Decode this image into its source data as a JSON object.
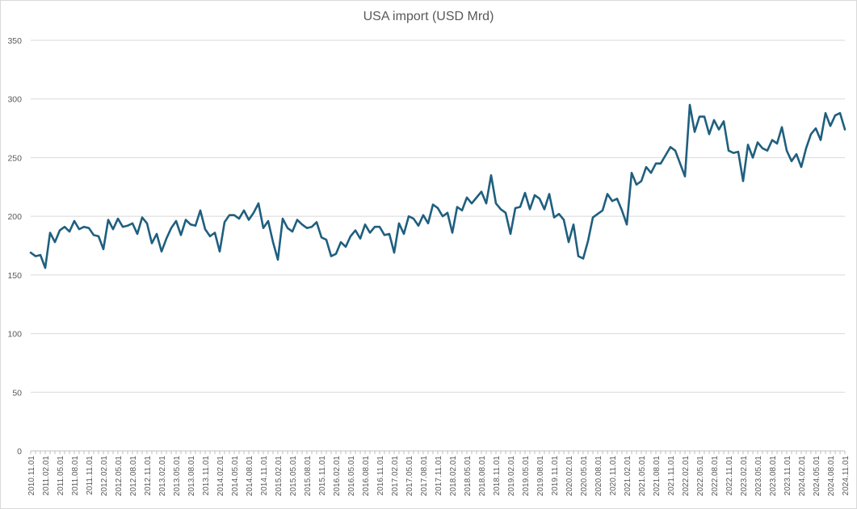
{
  "chart_data": {
    "type": "line",
    "title": "USA import (USD Mrd)",
    "xlabel": "",
    "ylabel": "",
    "ylim": [
      0,
      350
    ],
    "yticks": [
      0,
      50,
      100,
      150,
      200,
      250,
      300,
      350
    ],
    "grid": true,
    "legend": "none",
    "line_color": "#1f5f7f",
    "start_month": "2010.11.01",
    "x_tick_labels": [
      "2010.11.01",
      "2011.02.01",
      "2011.05.01",
      "2011.08.01",
      "2011.11.01",
      "2012.02.01",
      "2012.05.01",
      "2012.08.01",
      "2012.11.01",
      "2013.02.01",
      "2013.05.01",
      "2013.08.01",
      "2013.11.01",
      "2014.02.01",
      "2014.05.01",
      "2014.08.01",
      "2014.11.01",
      "2015.02.01",
      "2015.05.01",
      "2015.08.01",
      "2015.11.01",
      "2016.02.01",
      "2016.05.01",
      "2016.08.01",
      "2016.11.01",
      "2017.02.01",
      "2017.05.01",
      "2017.08.01",
      "2017.11.01",
      "2018.02.01",
      "2018.05.01",
      "2018.08.01",
      "2018.11.01",
      "2019.02.01",
      "2019.05.01",
      "2019.08.01",
      "2019.11.01",
      "2020.02.01",
      "2020.05.01",
      "2020.08.01",
      "2020.11.01",
      "2021.02.01",
      "2021.05.01",
      "2021.08.01",
      "2021.11.01",
      "2022.02.01",
      "2022.05.01",
      "2022.08.01",
      "2022.11.01",
      "2023.02.01",
      "2023.05.01",
      "2023.08.01",
      "2023.11.01",
      "2024.02.01",
      "2024.05.01",
      "2024.08.01",
      "2024.11.01"
    ],
    "values": [
      169,
      166,
      167,
      156,
      186,
      178,
      188,
      191,
      187,
      196,
      189,
      191,
      190,
      184,
      183,
      172,
      197,
      189,
      198,
      191,
      192,
      194,
      185,
      199,
      194,
      177,
      185,
      170,
      181,
      190,
      196,
      184,
      197,
      193,
      192,
      205,
      189,
      183,
      186,
      170,
      195,
      201,
      201,
      198,
      205,
      197,
      203,
      211,
      190,
      196,
      178,
      163,
      198,
      190,
      187,
      197,
      193,
      190,
      191,
      195,
      182,
      180,
      166,
      168,
      178,
      174,
      183,
      188,
      181,
      193,
      186,
      191,
      191,
      184,
      185,
      169,
      194,
      185,
      200,
      198,
      192,
      201,
      194,
      210,
      207,
      200,
      203,
      186,
      208,
      205,
      216,
      211,
      216,
      221,
      211,
      235,
      211,
      206,
      203,
      185,
      207,
      208,
      220,
      206,
      218,
      215,
      206,
      219,
      199,
      202,
      197,
      178,
      193,
      166,
      164,
      179,
      199,
      202,
      205,
      219,
      213,
      215,
      205,
      193,
      237,
      227,
      230,
      242,
      237,
      245,
      245,
      252,
      259,
      256,
      245,
      234,
      295,
      272,
      285,
      285,
      270,
      282,
      274,
      281,
      256,
      254,
      255,
      230,
      261,
      250,
      263,
      258,
      256,
      265,
      262,
      276,
      256,
      247,
      253,
      242,
      258,
      270,
      275,
      265,
      288,
      277,
      286,
      288,
      274
    ]
  }
}
